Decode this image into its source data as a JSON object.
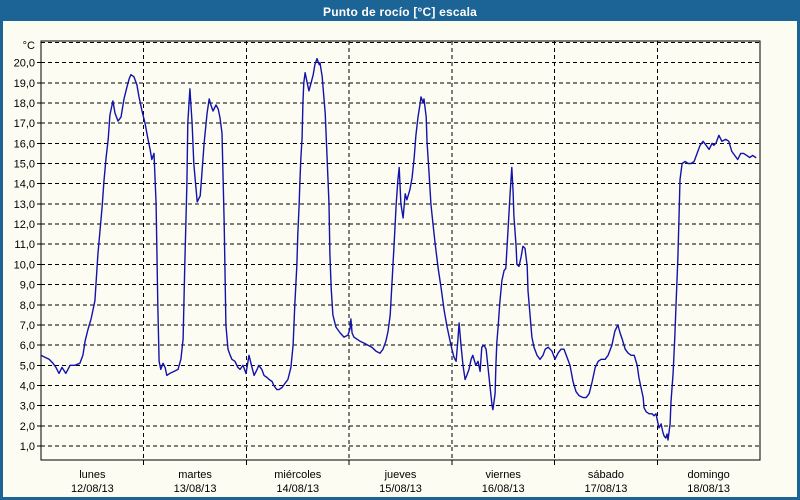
{
  "window": {
    "title": "Punto de rocío [°C] escala"
  },
  "colors": {
    "titlebar_bg": "#1d6496",
    "window_border": "#1d6496",
    "title_text": "#ffffff",
    "background": "#fcfcf2",
    "grid": "#000000",
    "frame": "#000000",
    "axis_text": "#000000",
    "line": "#1313ab"
  },
  "chart_data": {
    "type": "line",
    "title": "Punto de rocío [°C] escala",
    "unit_label": "°C",
    "grid_style": "dashed",
    "legend": false,
    "ylim": [
      0.31,
      21.07
    ],
    "y_tick_labels": [
      "20,0",
      "19,0",
      "18,0",
      "17,0",
      "16,0",
      "15,0",
      "14,0",
      "13,0",
      "12,0",
      "11,0",
      "10,0",
      "9,0",
      "8,0",
      "7,0",
      "6,0",
      "5,0",
      "4,0",
      "3,0",
      "2,0",
      "1,0"
    ],
    "x_days": [
      {
        "name": "lunes",
        "date": "12/08/13"
      },
      {
        "name": "martes",
        "date": "13/08/13"
      },
      {
        "name": "miércoles",
        "date": "14/08/13"
      },
      {
        "name": "jueves",
        "date": "15/08/13"
      },
      {
        "name": "viernes",
        "date": "16/08/13"
      },
      {
        "name": "sábado",
        "date": "17/08/13"
      },
      {
        "name": "domingo",
        "date": "18/08/13"
      }
    ],
    "x_total_hours": 168,
    "series": [
      {
        "name": "Punto de rocío [°C]",
        "color": "#1313ab",
        "x_unit": "hours since lunes 12/08/13 00:00",
        "points": [
          [
            0,
            5.5
          ],
          [
            0.9,
            5.4
          ],
          [
            1.9,
            5.3
          ],
          [
            2.8,
            5.1
          ],
          [
            3.5,
            4.9
          ],
          [
            4.2,
            4.6
          ],
          [
            4.9,
            4.9
          ],
          [
            5.8,
            4.6
          ],
          [
            6.8,
            5.0
          ],
          [
            7.9,
            5.0
          ],
          [
            9.1,
            5.1
          ],
          [
            9.8,
            5.5
          ],
          [
            10.3,
            6.2
          ],
          [
            11,
            6.8
          ],
          [
            11.7,
            7.3
          ],
          [
            12.6,
            8.2
          ],
          [
            13.3,
            10.5
          ],
          [
            14.3,
            12.9
          ],
          [
            14.7,
            14.1
          ],
          [
            15.2,
            15.3
          ],
          [
            15.7,
            16.2
          ],
          [
            16.1,
            17.4
          ],
          [
            16.8,
            18.1
          ],
          [
            17.3,
            17.5
          ],
          [
            18,
            17.1
          ],
          [
            18.7,
            17.3
          ],
          [
            19.4,
            18.2
          ],
          [
            20.1,
            18.8
          ],
          [
            20.6,
            19.2
          ],
          [
            21,
            19.4
          ],
          [
            21.7,
            19.3
          ],
          [
            22.4,
            18.9
          ],
          [
            22.9,
            18.3
          ],
          [
            23.6,
            17.6
          ],
          [
            24.3,
            17.0
          ],
          [
            25,
            16.2
          ],
          [
            25.5,
            15.7
          ],
          [
            25.9,
            15.2
          ],
          [
            26.4,
            15.5
          ],
          [
            26.9,
            13.0
          ],
          [
            27.3,
            8.0
          ],
          [
            27.6,
            5.2
          ],
          [
            28,
            4.8
          ],
          [
            28.5,
            5.1
          ],
          [
            29,
            4.9
          ],
          [
            29.4,
            4.5
          ],
          [
            30.1,
            4.6
          ],
          [
            31.1,
            4.7
          ],
          [
            32,
            4.8
          ],
          [
            32.7,
            5.3
          ],
          [
            33.2,
            6.3
          ],
          [
            33.6,
            10.0
          ],
          [
            34.1,
            14.0
          ],
          [
            34.3,
            17.0
          ],
          [
            34.8,
            18.7
          ],
          [
            35.3,
            17.0
          ],
          [
            35.7,
            15.0
          ],
          [
            36.5,
            13.1
          ],
          [
            37.2,
            13.4
          ],
          [
            37.6,
            14.5
          ],
          [
            38.1,
            16.0
          ],
          [
            38.8,
            17.5
          ],
          [
            39.3,
            18.2
          ],
          [
            39.7,
            17.9
          ],
          [
            40.2,
            17.6
          ],
          [
            40.9,
            17.9
          ],
          [
            41.4,
            17.7
          ],
          [
            41.8,
            17.3
          ],
          [
            42.3,
            16.5
          ],
          [
            42.8,
            12.0
          ],
          [
            43.2,
            7.0
          ],
          [
            43.7,
            5.8
          ],
          [
            44.2,
            5.5
          ],
          [
            44.6,
            5.3
          ],
          [
            45.3,
            5.2
          ],
          [
            46,
            4.9
          ],
          [
            46.5,
            4.8
          ],
          [
            47.2,
            5.0
          ],
          [
            47.9,
            4.6
          ],
          [
            48.6,
            5.5
          ],
          [
            49.3,
            4.9
          ],
          [
            49.8,
            4.5
          ],
          [
            50.5,
            4.8
          ],
          [
            50.9,
            5.0
          ],
          [
            51.6,
            4.8
          ],
          [
            52.1,
            4.5
          ],
          [
            52.8,
            4.4
          ],
          [
            53.3,
            4.3
          ],
          [
            54,
            4.2
          ],
          [
            54.4,
            4.0
          ],
          [
            55.1,
            3.8
          ],
          [
            55.6,
            3.8
          ],
          [
            56.3,
            3.9
          ],
          [
            57,
            4.1
          ],
          [
            57.7,
            4.3
          ],
          [
            58.4,
            4.9
          ],
          [
            58.9,
            6.0
          ],
          [
            59.3,
            8.0
          ],
          [
            59.8,
            10.0
          ],
          [
            60,
            11.5
          ],
          [
            60.3,
            12.9
          ],
          [
            60.5,
            14.1
          ],
          [
            60.7,
            15.2
          ],
          [
            61,
            16.3
          ],
          [
            61.2,
            18.0
          ],
          [
            61.4,
            19.0
          ],
          [
            61.7,
            19.5
          ],
          [
            62.2,
            19.0
          ],
          [
            62.6,
            18.6
          ],
          [
            63.1,
            19.0
          ],
          [
            63.6,
            19.4
          ],
          [
            64,
            19.9
          ],
          [
            64.5,
            20.2
          ],
          [
            65,
            19.9
          ],
          [
            65.2,
            20.0
          ],
          [
            65.4,
            19.7
          ],
          [
            65.7,
            19.3
          ],
          [
            65.9,
            18.8
          ],
          [
            66.4,
            17.5
          ],
          [
            66.8,
            15.5
          ],
          [
            67.3,
            13.0
          ],
          [
            67.5,
            10.5
          ],
          [
            67.8,
            8.8
          ],
          [
            68.2,
            7.5
          ],
          [
            68.9,
            6.9
          ],
          [
            69.9,
            6.6
          ],
          [
            70.8,
            6.4
          ],
          [
            71.7,
            6.5
          ],
          [
            72.2,
            6.8
          ],
          [
            72.4,
            7.3
          ],
          [
            72.7,
            6.6
          ],
          [
            73.1,
            6.4
          ],
          [
            73.8,
            6.3
          ],
          [
            74.5,
            6.2
          ],
          [
            75.5,
            6.1
          ],
          [
            76.4,
            6.0
          ],
          [
            77.3,
            5.9
          ],
          [
            78.3,
            5.7
          ],
          [
            79.2,
            5.6
          ],
          [
            79.9,
            5.8
          ],
          [
            80.6,
            6.2
          ],
          [
            81.1,
            6.7
          ],
          [
            81.6,
            7.5
          ],
          [
            82,
            9.0
          ],
          [
            82.5,
            11.0
          ],
          [
            83,
            13.0
          ],
          [
            83.4,
            14.2
          ],
          [
            83.7,
            14.8
          ],
          [
            84.1,
            13.0
          ],
          [
            84.6,
            12.3
          ],
          [
            85.1,
            13.5
          ],
          [
            85.5,
            13.2
          ],
          [
            86.2,
            13.7
          ],
          [
            86.7,
            14.3
          ],
          [
            87.2,
            15.3
          ],
          [
            87.6,
            16.4
          ],
          [
            88.1,
            17.3
          ],
          [
            88.6,
            18.0
          ],
          [
            88.8,
            18.3
          ],
          [
            89.3,
            18.0
          ],
          [
            89.5,
            18.2
          ],
          [
            90,
            17.3
          ],
          [
            90.2,
            16.1
          ],
          [
            90.7,
            14.4
          ],
          [
            91.1,
            13.0
          ],
          [
            91.6,
            12.0
          ],
          [
            92.1,
            11.0
          ],
          [
            92.8,
            9.8
          ],
          [
            93.5,
            8.8
          ],
          [
            94.2,
            7.7
          ],
          [
            94.9,
            6.9
          ],
          [
            95.6,
            6.2
          ],
          [
            96,
            5.8
          ],
          [
            96.5,
            5.4
          ],
          [
            97,
            5.2
          ],
          [
            97.4,
            6.2
          ],
          [
            97.7,
            7.1
          ],
          [
            98.1,
            6.1
          ],
          [
            98.6,
            5.0
          ],
          [
            99.1,
            4.3
          ],
          [
            99.5,
            4.5
          ],
          [
            100,
            4.8
          ],
          [
            100.5,
            5.3
          ],
          [
            100.9,
            5.5
          ],
          [
            101.6,
            5.0
          ],
          [
            102.1,
            5.2
          ],
          [
            102.6,
            4.7
          ],
          [
            103,
            5.9
          ],
          [
            103.5,
            6.0
          ],
          [
            104,
            5.8
          ],
          [
            104.4,
            5.0
          ],
          [
            104.9,
            4.0
          ],
          [
            105.4,
            3.0
          ],
          [
            105.6,
            2.8
          ],
          [
            106.1,
            3.6
          ],
          [
            106.3,
            5.0
          ],
          [
            106.5,
            6.1
          ],
          [
            106.8,
            6.9
          ],
          [
            107.2,
            8.1
          ],
          [
            107.7,
            9.2
          ],
          [
            108.2,
            9.7
          ],
          [
            108.6,
            9.8
          ],
          [
            109.1,
            11.6
          ],
          [
            109.6,
            13.5
          ],
          [
            110,
            14.8
          ],
          [
            110.3,
            13.6
          ],
          [
            110.5,
            12.4
          ],
          [
            111,
            10.9
          ],
          [
            111.2,
            10.0
          ],
          [
            111.7,
            9.9
          ],
          [
            112.2,
            10.4
          ],
          [
            112.6,
            10.9
          ],
          [
            113.1,
            10.8
          ],
          [
            113.6,
            9.9
          ],
          [
            113.8,
            8.7
          ],
          [
            114.3,
            7.4
          ],
          [
            114.7,
            6.4
          ],
          [
            115.2,
            5.9
          ],
          [
            115.9,
            5.5
          ],
          [
            116.6,
            5.3
          ],
          [
            117.3,
            5.5
          ],
          [
            117.8,
            5.8
          ],
          [
            118.5,
            5.9
          ],
          [
            119.4,
            5.7
          ],
          [
            120.1,
            5.3
          ],
          [
            120.8,
            5.6
          ],
          [
            121.5,
            5.8
          ],
          [
            122.2,
            5.8
          ],
          [
            122.9,
            5.4
          ],
          [
            123.6,
            5.0
          ],
          [
            124.3,
            4.2
          ],
          [
            125,
            3.7
          ],
          [
            125.7,
            3.5
          ],
          [
            126.7,
            3.4
          ],
          [
            127.4,
            3.4
          ],
          [
            128.1,
            3.6
          ],
          [
            128.8,
            4.2
          ],
          [
            129.5,
            4.9
          ],
          [
            130.2,
            5.2
          ],
          [
            130.9,
            5.3
          ],
          [
            131.8,
            5.3
          ],
          [
            132.5,
            5.5
          ],
          [
            133.4,
            6.0
          ],
          [
            134.1,
            6.7
          ],
          [
            134.8,
            7.0
          ],
          [
            135.3,
            6.6
          ],
          [
            135.8,
            6.3
          ],
          [
            136.5,
            5.8
          ],
          [
            137.2,
            5.6
          ],
          [
            137.9,
            5.5
          ],
          [
            138.6,
            5.5
          ],
          [
            139.3,
            5.0
          ],
          [
            139.7,
            4.4
          ],
          [
            140.2,
            3.9
          ],
          [
            140.7,
            3.4
          ],
          [
            140.9,
            2.9
          ],
          [
            141.4,
            2.7
          ],
          [
            142.1,
            2.6
          ],
          [
            142.8,
            2.6
          ],
          [
            143.2,
            2.5
          ],
          [
            143.7,
            2.6
          ],
          [
            144.2,
            2.1
          ],
          [
            144.4,
            1.9
          ],
          [
            144.9,
            2.1
          ],
          [
            145.3,
            1.7
          ],
          [
            145.6,
            1.5
          ],
          [
            146,
            1.4
          ],
          [
            146.3,
            1.6
          ],
          [
            146.5,
            1.3
          ],
          [
            147,
            2.1
          ],
          [
            147.2,
            3.2
          ],
          [
            147.7,
            4.6
          ],
          [
            148.1,
            6.4
          ],
          [
            148.4,
            8.1
          ],
          [
            148.8,
            10.2
          ],
          [
            149.1,
            12.5
          ],
          [
            149.3,
            14.2
          ],
          [
            149.8,
            15.0
          ],
          [
            150.5,
            15.1
          ],
          [
            151.2,
            15.0
          ],
          [
            151.9,
            15.0
          ],
          [
            152.6,
            15.1
          ],
          [
            153.3,
            15.5
          ],
          [
            154,
            15.9
          ],
          [
            154.7,
            16.1
          ],
          [
            155.4,
            15.9
          ],
          [
            156.1,
            15.7
          ],
          [
            156.8,
            16.0
          ],
          [
            157.2,
            15.9
          ],
          [
            157.7,
            16.0
          ],
          [
            158.4,
            16.4
          ],
          [
            159.1,
            16.1
          ],
          [
            160,
            16.2
          ],
          [
            160.7,
            16.1
          ],
          [
            161.4,
            15.6
          ],
          [
            162.1,
            15.4
          ],
          [
            162.8,
            15.2
          ],
          [
            163.5,
            15.5
          ],
          [
            164.2,
            15.5
          ],
          [
            164.9,
            15.4
          ],
          [
            165.6,
            15.3
          ],
          [
            166.3,
            15.4
          ],
          [
            167,
            15.3
          ]
        ]
      }
    ]
  }
}
